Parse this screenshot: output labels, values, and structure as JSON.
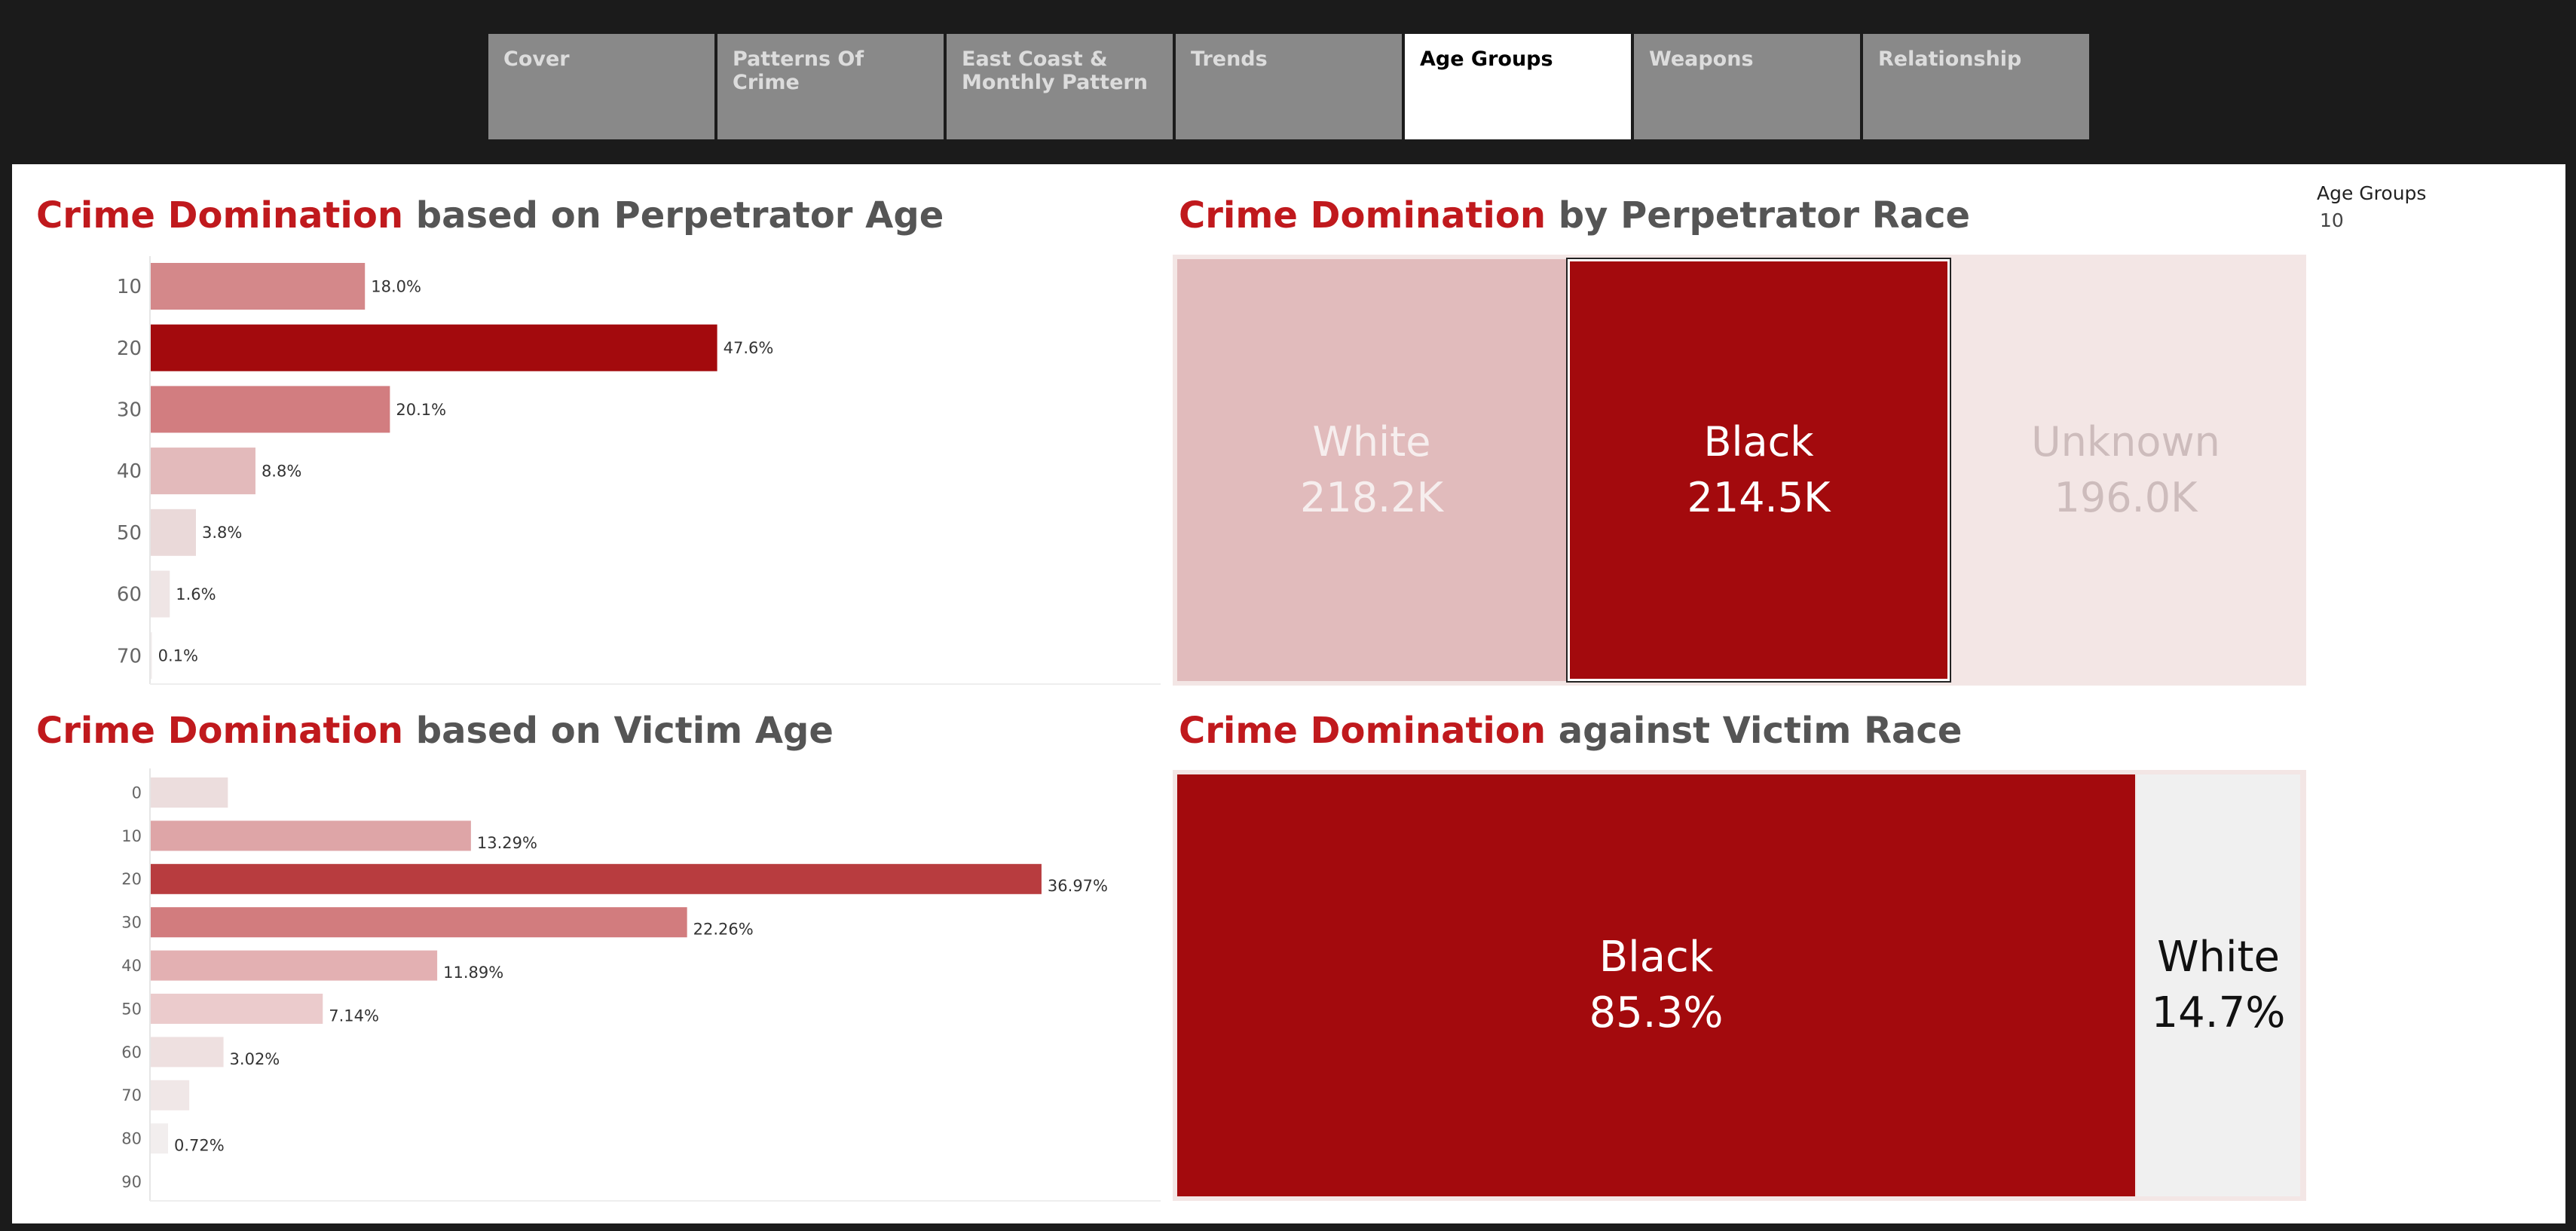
{
  "tabs": [
    "Cover",
    "Patterns Of Crime",
    "East Coast &\nMonthly Pattern",
    "Trends",
    "Age Groups",
    "Weapons",
    "Relationship"
  ],
  "active_tab": "Age Groups",
  "filter": {
    "label": "Age Groups",
    "value": "10"
  },
  "titles": {
    "perp_age": {
      "accent": "Crime Domination",
      "rest": " based on Perpetrator Age"
    },
    "perp_race": {
      "accent": "Crime Domination",
      "rest": " by Perpetrator Race"
    },
    "victim_age": {
      "accent": "Crime Domination",
      "rest": " based on Victim Age"
    },
    "victim_race": {
      "accent": "Crime Domination",
      "rest": " against Victim Race"
    }
  },
  "colors": {
    "accent": "#c0191d",
    "dark_red": "#a30a0d"
  },
  "chart_data": [
    {
      "id": "perp_age",
      "type": "bar",
      "orientation": "horizontal",
      "categories": [
        "10",
        "20",
        "30",
        "40",
        "50",
        "60",
        "70"
      ],
      "values": [
        18.0,
        47.6,
        20.1,
        8.8,
        3.8,
        1.6,
        0.1
      ],
      "labels": [
        "18.0%",
        "47.6%",
        "20.1%",
        "8.8%",
        "3.8%",
        "1.6%",
        "0.1%"
      ],
      "colors": [
        "#d4888a",
        "#a30a0d",
        "#d27d80",
        "#e3babb",
        "#ead9d9",
        "#efe5e5",
        "#f1ecec"
      ]
    },
    {
      "id": "perp_race",
      "type": "treemap",
      "items": [
        {
          "name": "White",
          "label": "218.2K",
          "value": 218.2,
          "color": "#e1bbbc",
          "text_color": "#f6eeee"
        },
        {
          "name": "Black",
          "label": "214.5K",
          "value": 214.5,
          "color": "#a30a0d",
          "text_color": "#ffffff"
        },
        {
          "name": "Unknown",
          "label": "196.0K",
          "value": 196.0,
          "color": "#f3e6e5",
          "text_color": "#cdbcbc"
        }
      ]
    },
    {
      "id": "victim_age",
      "type": "bar",
      "orientation": "horizontal",
      "categories": [
        "0",
        "10",
        "20",
        "30",
        "40",
        "50",
        "60",
        "70",
        "80",
        "90"
      ],
      "values": [
        3.2,
        13.29,
        36.97,
        22.26,
        11.89,
        7.14,
        3.02,
        1.6,
        0.72,
        0.0
      ],
      "labels": [
        "",
        "13.29%",
        "36.97%",
        "22.26%",
        "11.89%",
        "7.14%",
        "3.02%",
        "",
        "0.72%",
        ""
      ],
      "colors": [
        "#ecdddd",
        "#dea5a7",
        "#b83c3f",
        "#d27c7e",
        "#e3b0b2",
        "#ebcbcc",
        "#eee0e0",
        "#f0e7e7",
        "#f2eeee",
        "#f4f2f2"
      ]
    },
    {
      "id": "victim_race",
      "type": "treemap",
      "items": [
        {
          "name": "Black",
          "label": "85.3%",
          "value": 85.3,
          "color": "#a30a0d",
          "text_color": "#ffffff"
        },
        {
          "name": "White",
          "label": "14.7%",
          "value": 14.7,
          "color": "#f0f0f0",
          "text_color": "#111111"
        }
      ]
    }
  ]
}
